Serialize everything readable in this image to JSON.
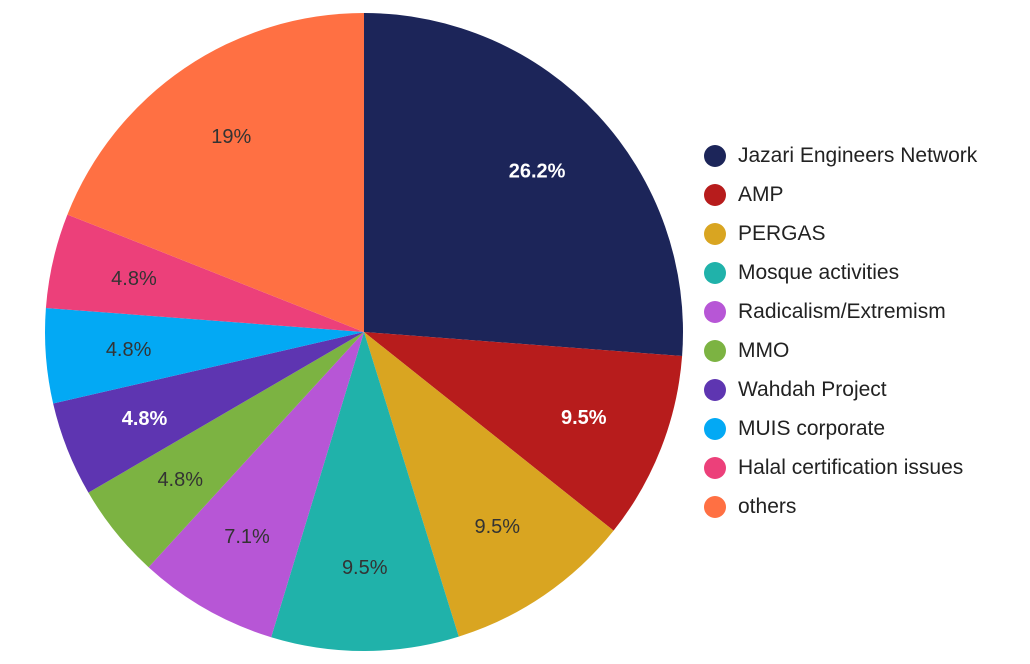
{
  "chart_data": {
    "type": "pie",
    "title": "",
    "legend_position": "right",
    "categories": [
      "Jazari Engineers Network",
      "AMP",
      "PERGAS",
      "Mosque activities",
      "Radicalism/Extremism",
      "MMO",
      "Wahdah Project",
      "MUIS corporate",
      "Halal certification issues",
      "others"
    ],
    "values": [
      26.2,
      9.5,
      9.5,
      9.5,
      7.1,
      4.8,
      4.8,
      4.8,
      4.8,
      19
    ],
    "labels": [
      "26.2%",
      "9.5%",
      "9.5%",
      "9.5%",
      "7.1%",
      "4.8%",
      "4.8%",
      "4.8%",
      "4.8%",
      "19%"
    ],
    "colors": [
      "#1c2559",
      "#b71c1c",
      "#d9a521",
      "#20b2aa",
      "#b756d6",
      "#7cb342",
      "#5e35b1",
      "#03a9f4",
      "#ec407a",
      "#ff7043"
    ],
    "label_colors": [
      "#ffffff",
      "#ffffff",
      "#333333",
      "#333333",
      "#333333",
      "#333333",
      "#ffffff",
      "#333333",
      "#333333",
      "#333333"
    ]
  }
}
